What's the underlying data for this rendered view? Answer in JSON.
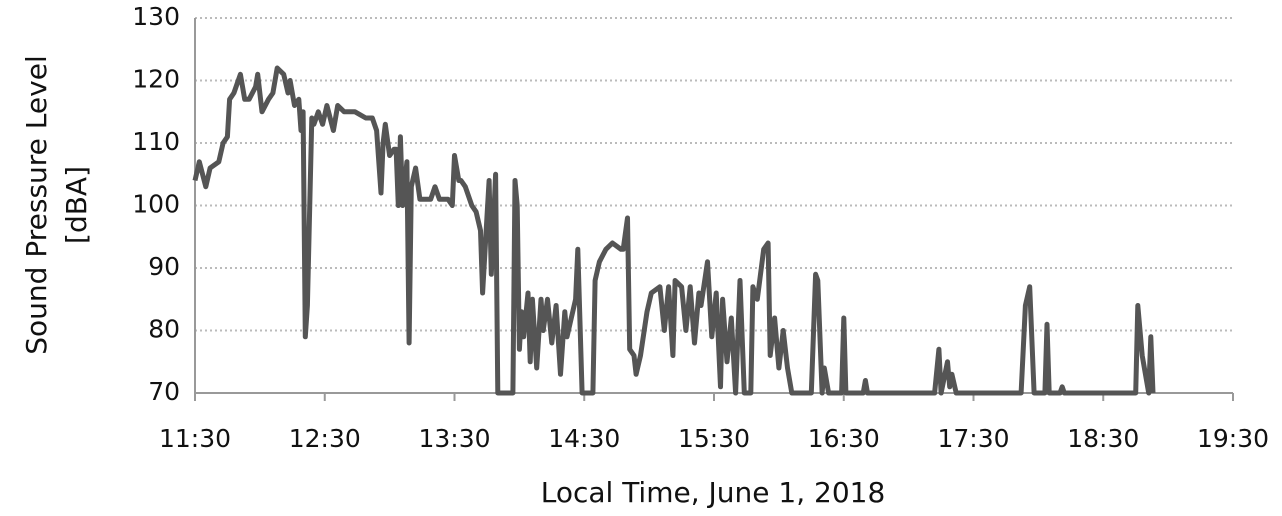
{
  "chart_data": {
    "type": "line",
    "xlabel": "Local Time, June 1, 2018",
    "ylabel": [
      "Sound Pressure Level",
      "[dBA]"
    ],
    "xlim": [
      "11:30",
      "19:30"
    ],
    "xticks": [
      "11:30",
      "12:30",
      "13:30",
      "14:30",
      "15:30",
      "16:30",
      "17:30",
      "18:30",
      "19:30"
    ],
    "ylim": [
      70,
      130
    ],
    "yticks": [
      70,
      80,
      90,
      100,
      110,
      120,
      130
    ],
    "grid": true,
    "series": [
      {
        "color": "#555555",
        "x": [
          "11:30",
          "11:32",
          "11:35",
          "11:37",
          "11:41",
          "11:43",
          "11:45",
          "11:46",
          "11:48",
          "11:51",
          "11:53",
          "11:55",
          "11:58",
          "11:59",
          "12:01",
          "12:04",
          "12:06",
          "12:08",
          "12:11",
          "12:13",
          "12:14",
          "12:16",
          "12:18",
          "12:19",
          "12:20",
          "12:21",
          "12:22",
          "12:24",
          "12:25",
          "12:27",
          "12:29",
          "12:31",
          "12:34",
          "12:36",
          "12:39",
          "12:44",
          "12:49",
          "12:52",
          "12:54",
          "12:56",
          "12:57",
          "12:58",
          "13:00",
          "13:02",
          "13:03",
          "13:04",
          "13:05",
          "13:06",
          "13:08",
          "13:09",
          "13:10",
          "13:12",
          "13:14",
          "13:19",
          "13:21",
          "13:23",
          "13:27",
          "13:29",
          "13:30",
          "13:32",
          "13:33",
          "13:35",
          "13:38",
          "13:40",
          "13:42",
          "13:43",
          "13:45",
          "13:46",
          "13:47",
          "13:49",
          "13:50",
          "13:57",
          "13:58",
          "13:59",
          "14:00",
          "14:01",
          "14:02",
          "14:04",
          "14:05",
          "14:06",
          "14:08",
          "14:10",
          "14:11",
          "14:13",
          "14:15",
          "14:17",
          "14:19",
          "14:21",
          "14:22",
          "14:24",
          "14:26",
          "14:27",
          "14:29",
          "14:34",
          "14:35",
          "14:37",
          "14:40",
          "14:43",
          "14:47",
          "14:48",
          "14:50",
          "14:51",
          "14:53",
          "14:54",
          "14:56",
          "14:59",
          "15:01",
          "15:05",
          "15:07",
          "15:09",
          "15:11",
          "15:12",
          "15:15",
          "15:17",
          "15:19",
          "15:21",
          "15:23",
          "15:24",
          "15:27",
          "15:29",
          "15:31",
          "15:33",
          "15:34",
          "15:36",
          "15:38",
          "15:40",
          "15:42",
          "15:44",
          "15:47",
          "15:48",
          "15:50",
          "15:53",
          "15:55",
          "15:56",
          "15:58",
          "16:00",
          "16:02",
          "16:04",
          "16:06",
          "16:15",
          "16:17",
          "16:18",
          "16:20",
          "16:21",
          "16:23",
          "16:29",
          "16:30",
          "16:31",
          "16:39",
          "16:40",
          "16:41",
          "17:12",
          "17:14",
          "17:15",
          "17:18",
          "17:19",
          "17:20",
          "17:22",
          "17:52",
          "17:54",
          "17:56",
          "17:58",
          "18:03",
          "18:04",
          "18:05",
          "18:10",
          "18:11",
          "18:12",
          "18:45",
          "18:46",
          "18:48",
          "18:51",
          "18:52",
          "18:53"
        ],
        "values": [
          104,
          107,
          103,
          106,
          107,
          110,
          111,
          117,
          118,
          121,
          117,
          117,
          119,
          121,
          115,
          117,
          118,
          122,
          121,
          118,
          120,
          116,
          117,
          112,
          115,
          79,
          84,
          114,
          113,
          115,
          113,
          116,
          112,
          116,
          115,
          115,
          114,
          114,
          112,
          102,
          110,
          113,
          108,
          109,
          109,
          100,
          111,
          100,
          107,
          78,
          103,
          106,
          101,
          101,
          103,
          101,
          101,
          100,
          108,
          104,
          104,
          103,
          100,
          99,
          96,
          86,
          98,
          104,
          89,
          105,
          70,
          70,
          104,
          100,
          77,
          83,
          79,
          86,
          75,
          85,
          74,
          85,
          80,
          85,
          78,
          84,
          73,
          83,
          79,
          82,
          85,
          93,
          70,
          70,
          88,
          91,
          93,
          94,
          93,
          93,
          98,
          77,
          76,
          73,
          76,
          83,
          86,
          87,
          80,
          87,
          76,
          88,
          87,
          80,
          87,
          78,
          86,
          84,
          91,
          79,
          86,
          71,
          85,
          75,
          82,
          70,
          88,
          70,
          70,
          87,
          85,
          93,
          94,
          76,
          82,
          74,
          80,
          74,
          70,
          70,
          89,
          88,
          70,
          74,
          70,
          70,
          82,
          70,
          70,
          72,
          70,
          70,
          77,
          70,
          75,
          71,
          73,
          70,
          70,
          84,
          87,
          70,
          70,
          81,
          70,
          70,
          71,
          70,
          70,
          84,
          76,
          70,
          79,
          70
        ]
      }
    ]
  }
}
